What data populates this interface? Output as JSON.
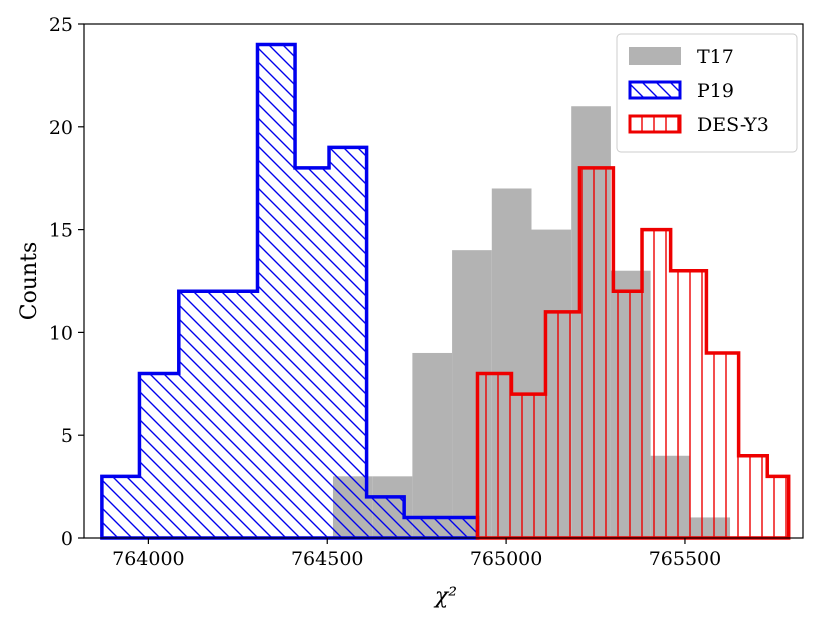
{
  "chart_data": {
    "type": "histogram",
    "xlabel": "χ²",
    "ylabel": "Counts",
    "xlim": [
      763820,
      765830
    ],
    "ylim": [
      0,
      25
    ],
    "xticks": [
      764000,
      764500,
      765000,
      765500
    ],
    "xtick_labels": [
      "764000",
      "764500",
      "765000",
      "765500"
    ],
    "yticks": [
      0,
      5,
      10,
      15,
      20,
      25
    ],
    "ytick_labels": [
      "0",
      "5",
      "10",
      "15",
      "20",
      "25"
    ],
    "legend_position": "top-right",
    "series": [
      {
        "name": "T17",
        "style": "filled",
        "color": "#b3b3b3",
        "edges": [
          764516,
          764627,
          764738,
          764849,
          764960,
          765071,
          765182,
          765293,
          765404,
          765515,
          765626
        ],
        "counts": [
          3,
          3,
          9,
          14,
          17,
          15,
          21,
          13,
          4,
          1
        ]
      },
      {
        "name": "P19",
        "style": "step-hatch-diagonal",
        "color": "#0000ee",
        "edges": [
          763870,
          763975,
          764085,
          764195,
          764305,
          764410,
          764505,
          764610,
          764715,
          764820,
          764920
        ],
        "counts": [
          3,
          8,
          12,
          12,
          24,
          18,
          19,
          2,
          1,
          1
        ]
      },
      {
        "name": "DES-Y3",
        "style": "step-hatch-vertical",
        "color": "#ee0000",
        "edges": [
          764920,
          765015,
          765110,
          765205,
          765300,
          765380,
          765460,
          765560,
          765650,
          765730,
          765790
        ],
        "counts": [
          8,
          7,
          11,
          18,
          12,
          15,
          13,
          9,
          4,
          3
        ]
      }
    ]
  }
}
